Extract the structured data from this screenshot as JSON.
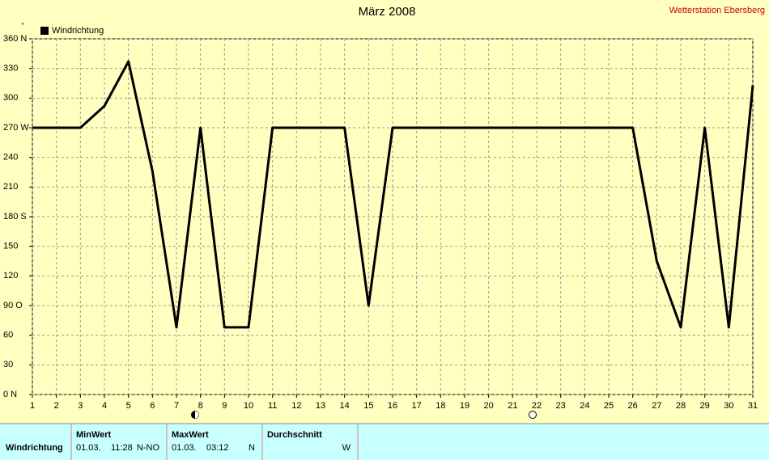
{
  "chart_data": {
    "type": "line",
    "title": "März 2008",
    "annotation": "Wetterstation Ebersberg",
    "y_unit": "°",
    "x": [
      1,
      2,
      3,
      4,
      5,
      6,
      7,
      8,
      9,
      10,
      11,
      12,
      13,
      14,
      15,
      16,
      17,
      18,
      19,
      20,
      21,
      22,
      23,
      24,
      25,
      26,
      27,
      28,
      29,
      30,
      31
    ],
    "series": [
      {
        "name": "Windrichtung",
        "color": "#000000",
        "values": [
          270,
          270,
          270,
          292,
          337,
          226,
          68,
          270,
          68,
          68,
          270,
          270,
          270,
          270,
          90,
          270,
          270,
          270,
          270,
          270,
          270,
          270,
          270,
          270,
          270,
          270,
          135,
          68,
          270,
          68,
          313
        ]
      }
    ],
    "xlim": [
      1,
      31
    ],
    "xticks": [
      1,
      2,
      3,
      4,
      5,
      6,
      7,
      8,
      9,
      10,
      11,
      12,
      13,
      14,
      15,
      16,
      17,
      18,
      19,
      20,
      21,
      22,
      23,
      24,
      25,
      26,
      27,
      28,
      29,
      30,
      31
    ],
    "ylim": [
      0,
      360
    ],
    "yticks": [
      {
        "value": 0,
        "label": "0  N"
      },
      30,
      60,
      {
        "value": 90,
        "label": "90  O"
      },
      120,
      150,
      {
        "value": 180,
        "label": "180 S"
      },
      210,
      240,
      {
        "value": 270,
        "label": "270 W"
      },
      300,
      330,
      {
        "value": 360,
        "label": "360 N"
      }
    ],
    "grid": true
  },
  "summary": {
    "row_label": "Windrichtung",
    "columns": [
      {
        "header": "MinWert",
        "date": "01.03.",
        "time": "11:28",
        "value": "N-NO"
      },
      {
        "header": "MaxWert",
        "date": "01.03.",
        "time": "03:12",
        "value": "N"
      },
      {
        "header": "Durchschnitt",
        "value": "W"
      }
    ]
  }
}
